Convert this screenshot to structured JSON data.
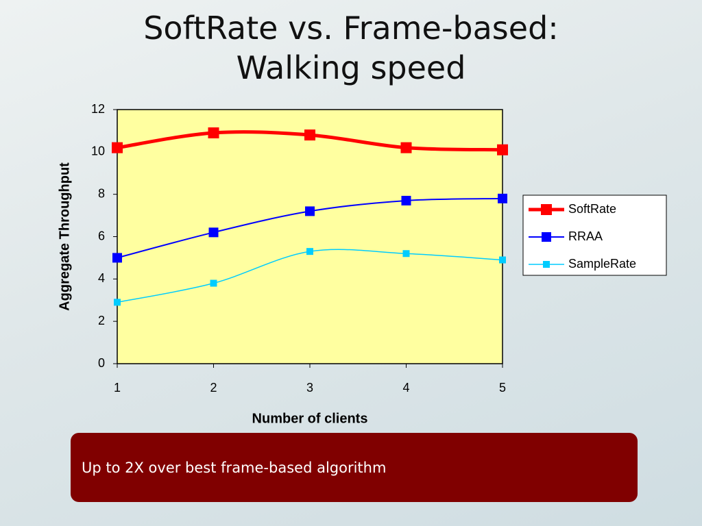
{
  "chart_data": {
    "type": "line",
    "title": "SoftRate vs. Frame-based: Walking speed",
    "x_label": "Number of clients",
    "y_label": "Aggregate Throughput",
    "x": [
      1,
      2,
      3,
      4,
      5
    ],
    "xlim": [
      1,
      5
    ],
    "xticks": [
      1,
      2,
      3,
      4,
      5
    ],
    "ylim": [
      0,
      12
    ],
    "yticks": [
      0,
      2,
      4,
      6,
      8,
      10,
      12
    ],
    "legend": "right",
    "background": "#ffffa0",
    "series": [
      {
        "name": "SoftRate",
        "color": "#ff0000",
        "values": [
          10.2,
          10.9,
          10.8,
          10.2,
          10.1
        ]
      },
      {
        "name": "RRAA",
        "color": "#0000ff",
        "values": [
          5.0,
          6.2,
          7.2,
          7.7,
          7.8
        ]
      },
      {
        "name": "SampleRate",
        "color": "#00ccff",
        "values": [
          2.9,
          3.8,
          5.3,
          5.2,
          4.9
        ]
      }
    ],
    "caption": "Up to 2X over best frame-based algorithm"
  }
}
